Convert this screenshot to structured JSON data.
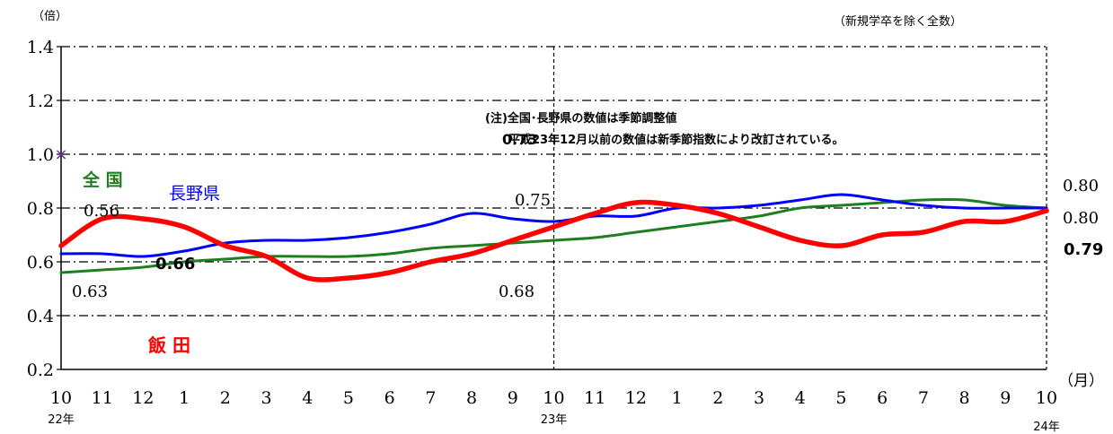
{
  "chart_data": {
    "type": "line",
    "y_unit": "（倍）",
    "x_unit": "（月）",
    "top_right_note": "（新規学卒を除く全数）",
    "note_line1": "(注)全国･長野県の数値は季節調整値",
    "note_line2": "平成23年12月以前の数値は新季節指数により改訂されている。",
    "ylim": [
      0.2,
      1.4
    ],
    "y_ticks": [
      "0.2",
      "0.4",
      "0.6",
      "0.8",
      "1.0",
      "1.2",
      "1.4"
    ],
    "x_tick_labels": [
      "10",
      "11",
      "12",
      "1",
      "2",
      "3",
      "4",
      "5",
      "6",
      "7",
      "8",
      "9",
      "10",
      "11",
      "12",
      "1",
      "2",
      "3",
      "4",
      "5",
      "6",
      "7",
      "8",
      "9",
      "10"
    ],
    "year_labels": [
      {
        "index": 0,
        "text": "22年"
      },
      {
        "index": 12,
        "text": "23年"
      },
      {
        "index": 24,
        "text": "24年"
      }
    ],
    "marker": {
      "index": 0,
      "value": 1.0,
      "symbol": "×",
      "color": "#7030a0"
    },
    "series": [
      {
        "name": "全 国",
        "color": "#1f7f1f",
        "values": [
          0.56,
          0.57,
          0.58,
          0.6,
          0.61,
          0.62,
          0.62,
          0.62,
          0.63,
          0.65,
          0.66,
          0.67,
          0.68,
          0.69,
          0.71,
          0.73,
          0.75,
          0.77,
          0.8,
          0.81,
          0.82,
          0.83,
          0.83,
          0.81,
          0.8
        ]
      },
      {
        "name": "長野県",
        "color": "#0000ff",
        "values": [
          0.63,
          0.63,
          0.62,
          0.64,
          0.67,
          0.68,
          0.68,
          0.69,
          0.71,
          0.74,
          0.78,
          0.76,
          0.75,
          0.77,
          0.77,
          0.8,
          0.8,
          0.81,
          0.83,
          0.85,
          0.83,
          0.81,
          0.8,
          0.8,
          0.8
        ]
      },
      {
        "name": "飯 田",
        "color": "#ff0000",
        "values": [
          0.66,
          0.76,
          0.76,
          0.73,
          0.66,
          0.62,
          0.54,
          0.54,
          0.56,
          0.6,
          0.63,
          0.68,
          0.73,
          0.78,
          0.82,
          0.81,
          0.78,
          0.73,
          0.68,
          0.66,
          0.7,
          0.71,
          0.75,
          0.75,
          0.79
        ]
      }
    ],
    "data_labels": [
      {
        "id": "lbl-056",
        "text": "0.56"
      },
      {
        "id": "lbl-063",
        "text": "0.63"
      },
      {
        "id": "lbl-066",
        "text": "0.66"
      },
      {
        "id": "lbl-075",
        "text": "0.75"
      },
      {
        "id": "lbl-068",
        "text": "0.68"
      },
      {
        "id": "lbl-073",
        "text": "0.73"
      },
      {
        "id": "lbl-080a",
        "text": "0.80"
      },
      {
        "id": "lbl-080b",
        "text": "0.80"
      },
      {
        "id": "lbl-079",
        "text": "0.79"
      }
    ]
  }
}
